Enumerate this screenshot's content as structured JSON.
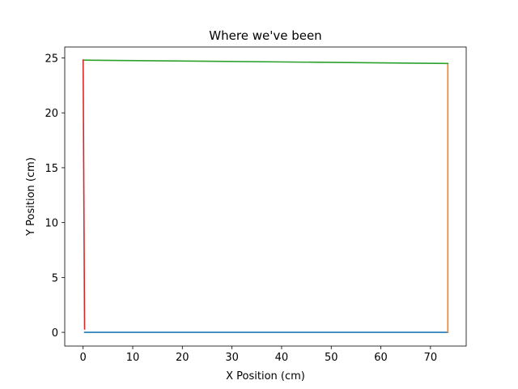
{
  "chart_data": {
    "type": "line",
    "title": "Where we've been",
    "xlabel": "X Position (cm)",
    "ylabel": "Y Position (cm)",
    "xlim": [
      -3.7,
      77.2
    ],
    "ylim": [
      -1.25,
      26.0
    ],
    "xticks": [
      0,
      10,
      20,
      30,
      40,
      50,
      60,
      70
    ],
    "yticks": [
      0,
      5,
      10,
      15,
      20,
      25
    ],
    "grid": false,
    "legend": "none",
    "series": [
      {
        "color": "#1f77b4",
        "x": [
          0.3,
          73.5
        ],
        "y": [
          0.0,
          0.0
        ]
      },
      {
        "color": "#ff7f0e",
        "x": [
          73.5,
          73.5
        ],
        "y": [
          0.0,
          24.5
        ]
      },
      {
        "color": "#2ca02c",
        "x": [
          73.5,
          0.0
        ],
        "y": [
          24.5,
          24.8
        ]
      },
      {
        "color": "#d62728",
        "x": [
          0.0,
          0.3
        ],
        "y": [
          24.8,
          0.3
        ]
      }
    ]
  }
}
